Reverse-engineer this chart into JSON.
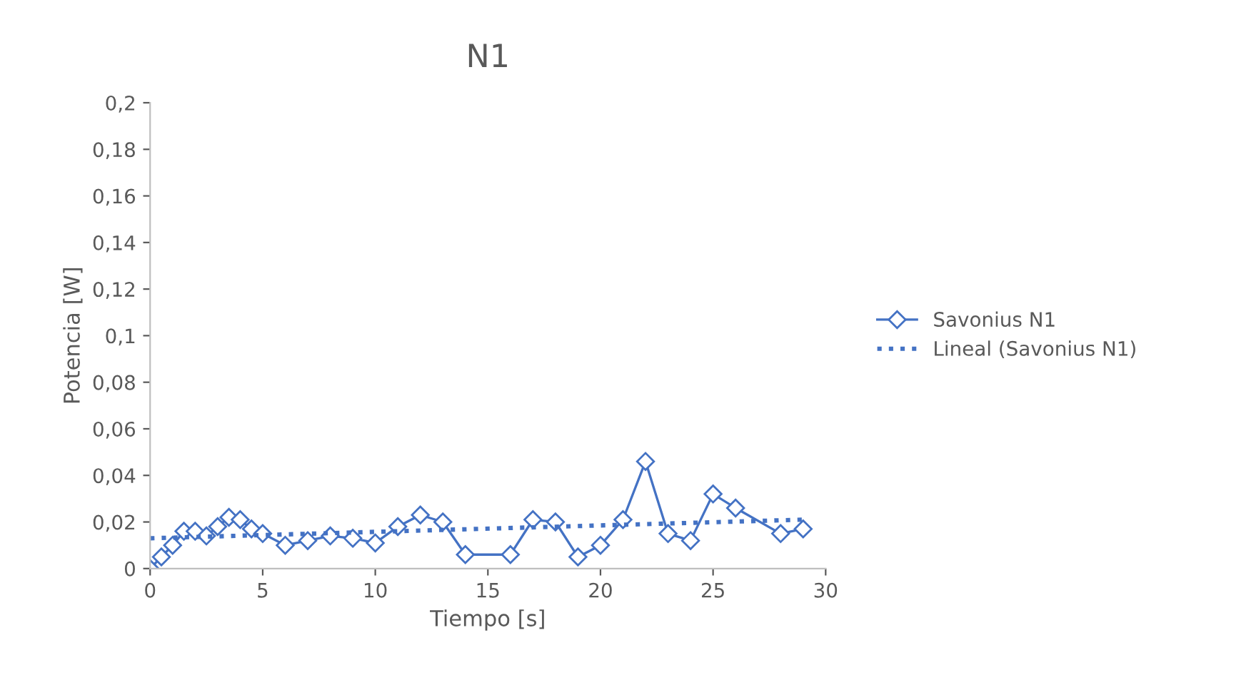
{
  "chart_data": {
    "type": "line",
    "title": "N1",
    "xlabel": "Tiempo [s]",
    "ylabel": "Potencia [W]",
    "xlim": [
      0,
      30
    ],
    "xticks": [
      0,
      5,
      10,
      15,
      20,
      25,
      30
    ],
    "ylim": [
      0,
      0.2
    ],
    "yticks": [
      {
        "value": 0,
        "label": "0"
      },
      {
        "value": 0.02,
        "label": "0,02"
      },
      {
        "value": 0.04,
        "label": "0,04"
      },
      {
        "value": 0.06,
        "label": "0,06"
      },
      {
        "value": 0.08,
        "label": "0,08"
      },
      {
        "value": 0.1,
        "label": "0,1"
      },
      {
        "value": 0.12,
        "label": "0,12"
      },
      {
        "value": 0.14,
        "label": "0,14"
      },
      {
        "value": 0.16,
        "label": "0,16"
      },
      {
        "value": 0.18,
        "label": "0,18"
      },
      {
        "value": 0.2,
        "label": "0,2"
      }
    ],
    "grid": false,
    "legend": "right",
    "series": [
      {
        "name": "Savonius N1",
        "color": "#4472c4",
        "marker": "diamond",
        "line_style": "solid",
        "x": [
          0,
          0.5,
          1,
          1.5,
          2,
          2.5,
          3,
          3.5,
          4,
          4.5,
          5,
          6,
          7,
          8,
          9,
          10,
          11,
          12,
          13,
          14,
          16,
          17,
          18,
          19,
          20,
          21,
          22,
          23,
          24,
          25,
          26,
          28,
          29
        ],
        "values": [
          0,
          0.005,
          0.01,
          0.016,
          0.016,
          0.014,
          0.018,
          0.022,
          0.021,
          0.017,
          0.015,
          0.01,
          0.012,
          0.014,
          0.013,
          0.011,
          0.018,
          0.023,
          0.02,
          0.006,
          0.006,
          0.021,
          0.02,
          0.005,
          0.01,
          0.021,
          0.046,
          0.015,
          0.012,
          0.032,
          0.026,
          0.015,
          0.017
        ]
      },
      {
        "name": "Lineal (Savonius N1)",
        "color": "#4472c4",
        "marker": "none",
        "line_style": "dotted",
        "x": [
          0,
          29
        ],
        "values": [
          0.013,
          0.021
        ]
      }
    ]
  }
}
